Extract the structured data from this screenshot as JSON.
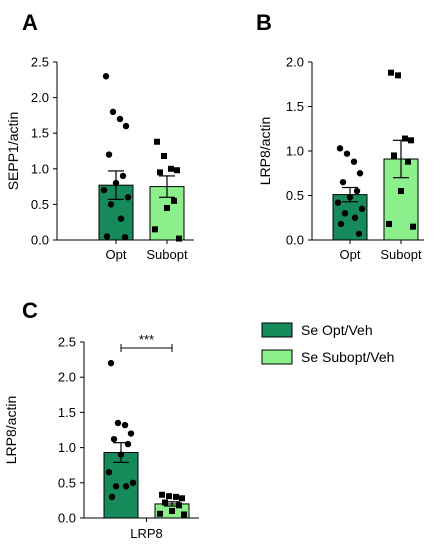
{
  "chart_data": [
    {
      "panel": "A",
      "type": "bar",
      "ylabel": "SEPP1/actin",
      "ylim": [
        0,
        2.5
      ],
      "yticks": [
        "0.0",
        "0.5",
        "1.0",
        "1.5",
        "2.0",
        "2.5"
      ],
      "categories": [
        "Opt",
        "Subopt"
      ],
      "bars": [
        {
          "category": "Opt",
          "mean": 0.77,
          "sem": 0.2,
          "color": "#168a5b",
          "marker": "circle",
          "points": [
            2.3,
            1.8,
            1.7,
            1.6,
            1.2,
            0.9,
            0.8,
            0.7,
            0.6,
            0.5,
            0.3,
            0.05,
            0.04
          ]
        },
        {
          "category": "Subopt",
          "mean": 0.75,
          "sem": 0.15,
          "color": "#8bf08b",
          "marker": "square",
          "points": [
            1.38,
            1.18,
            1.0,
            0.98,
            0.95,
            0.55,
            0.45,
            0.15,
            0.02
          ]
        }
      ]
    },
    {
      "panel": "B",
      "type": "bar",
      "ylabel": "LRP8/actin",
      "ylim": [
        0,
        2.0
      ],
      "yticks": [
        "0.0",
        "0.5",
        "1.0",
        "1.5",
        "2.0"
      ],
      "categories": [
        "Opt",
        "Subopt"
      ],
      "bars": [
        {
          "category": "Opt",
          "mean": 0.51,
          "sem": 0.08,
          "color": "#168a5b",
          "marker": "circle",
          "points": [
            1.03,
            0.97,
            0.88,
            0.75,
            0.65,
            0.55,
            0.48,
            0.42,
            0.35,
            0.3,
            0.25,
            0.18,
            0.07
          ]
        },
        {
          "category": "Subopt",
          "mean": 0.91,
          "sem": 0.21,
          "color": "#8bf08b",
          "marker": "square",
          "points": [
            1.88,
            1.85,
            1.14,
            1.12,
            0.95,
            0.88,
            0.55,
            0.18,
            0.15
          ]
        }
      ]
    },
    {
      "panel": "C",
      "type": "bar",
      "ylabel": "LRP8/actin",
      "ylim": [
        0,
        2.5
      ],
      "yticks": [
        "0.0",
        "0.5",
        "1.0",
        "1.5",
        "2.0",
        "2.5"
      ],
      "categories": [
        "LRP8"
      ],
      "annotation": "***",
      "bars": [
        {
          "series": "Se Opt/Veh",
          "mean": 0.93,
          "sem": 0.14,
          "color": "#168a5b",
          "marker": "circle",
          "points": [
            2.2,
            1.35,
            1.32,
            1.2,
            1.12,
            1.05,
            0.9,
            0.65,
            0.5,
            0.45,
            0.45,
            0.3
          ]
        },
        {
          "series": "Se Subopt/Veh",
          "mean": 0.2,
          "sem": 0.03,
          "color": "#8bf08b",
          "marker": "square",
          "points": [
            0.33,
            0.31,
            0.3,
            0.28,
            0.22,
            0.18,
            0.1,
            0.06,
            0.05
          ]
        }
      ]
    }
  ],
  "legend": [
    {
      "label": "Se Opt/Veh",
      "color": "#168a5b"
    },
    {
      "label": "Se Subopt/Veh",
      "color": "#8bf08b"
    }
  ]
}
